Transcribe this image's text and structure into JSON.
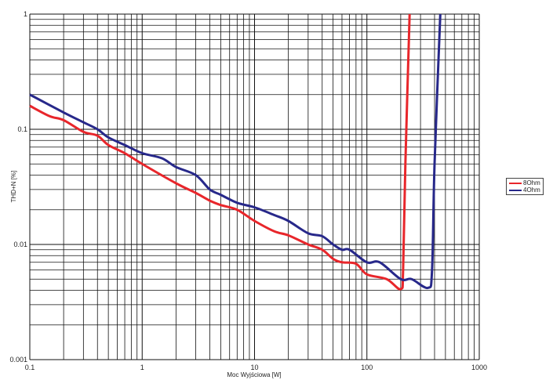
{
  "chart_data": {
    "type": "line",
    "title": "",
    "xlabel": "Moc Wyjściowa [W]",
    "ylabel": "THD+N [%]",
    "xscale": "log",
    "yscale": "log",
    "xlim": [
      0.1,
      1000
    ],
    "ylim": [
      0.001,
      1
    ],
    "xticks": [
      "0.1",
      "1",
      "10",
      "100",
      "1000"
    ],
    "yticks": [
      "0.001",
      "0.01",
      "0.1",
      "1"
    ],
    "grid": true,
    "legend": "right",
    "series": [
      {
        "name": "8Ohm",
        "color": "#e8262b",
        "x": [
          0.1,
          0.15,
          0.2,
          0.3,
          0.4,
          0.5,
          0.7,
          1,
          2,
          3,
          4,
          5,
          7,
          10,
          15,
          20,
          30,
          40,
          50,
          60,
          80,
          100,
          150,
          200,
          210,
          220,
          240
        ],
        "y": [
          0.16,
          0.13,
          0.12,
          0.095,
          0.088,
          0.073,
          0.062,
          0.05,
          0.034,
          0.028,
          0.024,
          0.022,
          0.02,
          0.016,
          0.013,
          0.012,
          0.01,
          0.009,
          0.0075,
          0.007,
          0.0068,
          0.0055,
          0.005,
          0.0041,
          0.006,
          0.05,
          1
        ]
      },
      {
        "name": "4Ohm",
        "color": "#27288a",
        "x": [
          0.1,
          0.2,
          0.3,
          0.4,
          0.5,
          0.7,
          1,
          1.5,
          2,
          3,
          4,
          5,
          7,
          10,
          15,
          20,
          30,
          40,
          50,
          60,
          70,
          100,
          130,
          200,
          250,
          350,
          380,
          400,
          450
        ],
        "y": [
          0.2,
          0.14,
          0.115,
          0.1,
          0.085,
          0.073,
          0.062,
          0.056,
          0.047,
          0.04,
          0.03,
          0.027,
          0.023,
          0.021,
          0.018,
          0.016,
          0.0125,
          0.0118,
          0.01,
          0.009,
          0.009,
          0.007,
          0.007,
          0.005,
          0.005,
          0.0042,
          0.006,
          0.05,
          1
        ]
      }
    ]
  }
}
